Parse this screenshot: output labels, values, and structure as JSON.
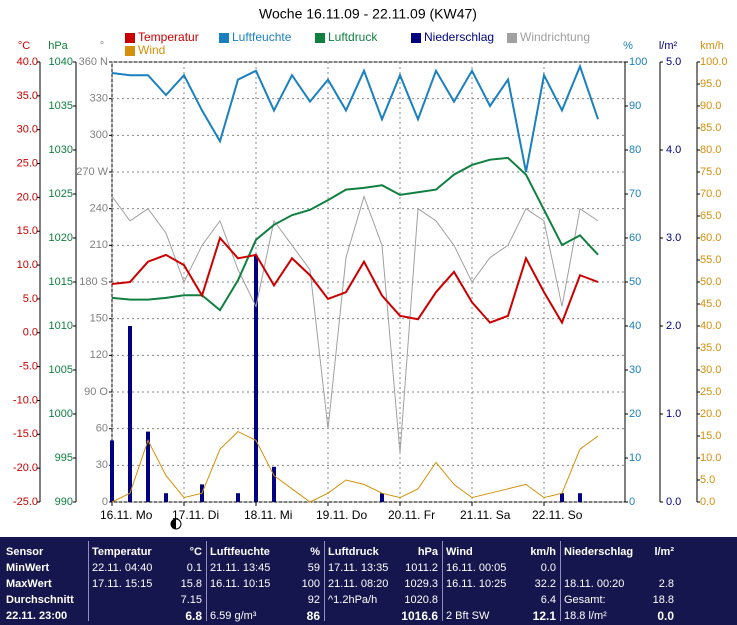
{
  "chart_data": {
    "type": "line",
    "title": "Woche 16.11.09 - 22.11.09 (KW47)",
    "x": [
      0,
      6,
      12,
      18,
      24,
      30,
      36,
      42,
      48,
      54,
      60,
      66,
      72,
      78,
      84,
      90,
      96,
      102,
      108,
      114,
      120,
      126,
      132,
      138,
      144,
      150,
      156,
      162
    ],
    "xlim": [
      0,
      171
    ],
    "xticks": [
      {
        "value": 0,
        "label": "16.11. Mo"
      },
      {
        "value": 24,
        "label": "17.11. Di"
      },
      {
        "value": 48,
        "label": "18.11. Mi"
      },
      {
        "value": 72,
        "label": "19.11. Do"
      },
      {
        "value": 96,
        "label": "20.11. Fr"
      },
      {
        "value": 120,
        "label": "21.11. Sa"
      },
      {
        "value": 144,
        "label": "22.11. So"
      }
    ],
    "axes": [
      {
        "label": "°C",
        "color": "#cc0000",
        "lim": [
          -25,
          40
        ],
        "grid": false,
        "ticks": [
          {
            "value": -25,
            "label": "-25.0"
          },
          {
            "value": -20,
            "label": "-20.0"
          },
          {
            "value": -15,
            "label": "-15.0"
          },
          {
            "value": -10,
            "label": "-10.0"
          },
          {
            "value": -5,
            "label": "-5.0"
          },
          {
            "value": 0,
            "label": "0.0"
          },
          {
            "value": 5,
            "label": "5.0"
          },
          {
            "value": 10,
            "label": "10.0"
          },
          {
            "value": 15,
            "label": "15.0"
          },
          {
            "value": 20,
            "label": "20.0"
          },
          {
            "value": 25,
            "label": "25.0"
          },
          {
            "value": 30,
            "label": "30.0"
          },
          {
            "value": 35,
            "label": "35.0"
          },
          {
            "value": 40,
            "label": "40.0"
          }
        ]
      },
      {
        "label": "hPa",
        "color": "#108040",
        "lim": [
          990,
          1040
        ],
        "grid": false,
        "ticks": [
          990,
          995,
          1000,
          1005,
          1010,
          1015,
          1020,
          1025,
          1030,
          1035,
          1040
        ]
      },
      {
        "label": "°",
        "color": "#808080",
        "lim": [
          0,
          360
        ],
        "grid": true,
        "ticks": [
          0,
          30,
          60,
          {
            "value": 90,
            "label": "90 O"
          },
          120,
          150,
          {
            "value": 180,
            "label": "180 S"
          },
          210,
          240,
          {
            "value": 270,
            "label": "270 W"
          },
          300,
          330,
          {
            "value": 360,
            "label": "360 N"
          }
        ]
      },
      {
        "label": "%",
        "color": "#1a80c0",
        "lim": [
          0,
          100
        ],
        "grid": false,
        "ticks": [
          0,
          10,
          20,
          30,
          40,
          50,
          60,
          70,
          80,
          90,
          100
        ]
      },
      {
        "label": "l/m²",
        "color": "#000080",
        "lim": [
          0,
          5
        ],
        "grid": false,
        "ticks": [
          {
            "value": 0,
            "label": "0.0"
          },
          {
            "value": 1,
            "label": "1.0"
          },
          {
            "value": 2,
            "label": "2.0"
          },
          {
            "value": 3,
            "label": "3.0"
          },
          {
            "value": 4,
            "label": "4.0"
          },
          {
            "value": 5,
            "label": "5.0"
          }
        ]
      },
      {
        "label": "km/h",
        "color": "#d4900a",
        "lim": [
          0,
          100
        ],
        "grid": false,
        "ticks": [
          {
            "value": 0,
            "label": "0.0"
          },
          {
            "value": 5,
            "label": "5.0"
          },
          {
            "value": 10,
            "label": "10.0"
          },
          {
            "value": 15,
            "label": "15.0"
          },
          {
            "value": 20,
            "label": "20.0"
          },
          {
            "value": 25,
            "label": "25.0"
          },
          {
            "value": 30,
            "label": "30.0"
          },
          {
            "value": 35,
            "label": "35.0"
          },
          {
            "value": 40,
            "label": "40.0"
          },
          {
            "value": 45,
            "label": "45.0"
          },
          {
            "value": 50,
            "label": "50.0"
          },
          {
            "value": 55,
            "label": "55.0"
          },
          {
            "value": 60,
            "label": "60.0"
          },
          {
            "value": 65,
            "label": "65.0"
          },
          {
            "value": 70,
            "label": "70.0"
          },
          {
            "value": 75,
            "label": "75.0"
          },
          {
            "value": 80,
            "label": "80.0"
          },
          {
            "value": 85,
            "label": "85.0"
          },
          {
            "value": 90,
            "label": "90.0"
          },
          {
            "value": 95,
            "label": "95.0"
          },
          {
            "value": 100,
            "label": "100.0"
          }
        ]
      }
    ],
    "series": [
      {
        "name": "Niederschlag",
        "color": "#000080",
        "axis": 4,
        "kind": "bar",
        "values": [
          0.7,
          2.0,
          0.8,
          0.1,
          0,
          0.2,
          0,
          0.1,
          2.8,
          0.4,
          0,
          0,
          0,
          0,
          0,
          0.1,
          0,
          0,
          0,
          0,
          0,
          0,
          0,
          0,
          0,
          0.1,
          0.1,
          0
        ]
      },
      {
        "name": "Windrichtung",
        "color": "#a0a0a0",
        "axis": 2,
        "kind": "line",
        "values": [
          250,
          230,
          240,
          220,
          180,
          210,
          230,
          190,
          160,
          230,
          210,
          190,
          60,
          200,
          250,
          210,
          40,
          240,
          230,
          210,
          180,
          200,
          210,
          240,
          230,
          160,
          240,
          230
        ]
      },
      {
        "name": "Wind",
        "color": "#d4900a",
        "axis": 5,
        "kind": "line",
        "values": [
          0,
          2,
          14,
          6,
          1,
          2,
          12,
          16,
          14,
          6,
          3,
          0,
          2,
          5,
          4,
          2,
          1,
          3,
          9,
          4,
          1,
          2,
          3,
          4,
          1,
          2,
          12,
          15
        ]
      },
      {
        "name": "Luftfeuchte",
        "color": "#1a80c0",
        "axis": 3,
        "kind": "line",
        "values": [
          97.5,
          97,
          97,
          92.5,
          97,
          89,
          82,
          96,
          98,
          89,
          97,
          91,
          96,
          89,
          98,
          87,
          97,
          87,
          98,
          91,
          98,
          90,
          96,
          75,
          97,
          89,
          99,
          87
        ]
      },
      {
        "name": "Luftdruck",
        "color": "#108040",
        "axis": 1,
        "kind": "line",
        "values": [
          1013.2,
          1013,
          1013,
          1013.2,
          1013.5,
          1013.5,
          1011.8,
          1015.2,
          1019.8,
          1021.5,
          1022.6,
          1023.2,
          1024.3,
          1025.5,
          1025.7,
          1026,
          1024.9,
          1025.2,
          1025.5,
          1027.2,
          1028.3,
          1028.9,
          1029.1,
          1027.2,
          1023.2,
          1019.2,
          1020.3,
          1018.1
        ]
      },
      {
        "name": "Temperatur",
        "color": "#cc0000",
        "axis": 0,
        "kind": "line",
        "values": [
          7.2,
          7.5,
          10.5,
          11.5,
          10,
          5.5,
          14,
          11,
          11.5,
          7,
          11,
          8.5,
          5,
          6,
          10.5,
          5.5,
          2.5,
          2,
          6,
          9,
          4.5,
          1.5,
          2.5,
          11,
          6,
          1.5,
          8.5,
          7.5
        ]
      }
    ]
  },
  "table": {
    "header": [
      {
        "name": "Sensor"
      },
      {
        "name": "Temperatur",
        "unit": "°C"
      },
      {
        "name": "Luftfeuchte",
        "unit": "%"
      },
      {
        "name": "Luftdruck",
        "unit": "hPa"
      },
      {
        "name": "Wind",
        "unit": "km/h"
      },
      {
        "name": "Niederschlag",
        "unit": "l/m²"
      }
    ],
    "rows": [
      {
        "label": "MinWert",
        "cells": [
          {
            "time": "22.11. 04:40",
            "value": "0.1"
          },
          {
            "time": "21.11. 13:45",
            "value": "59"
          },
          {
            "time": "17.11. 13:35",
            "value": "1011.2"
          },
          {
            "time": "16.11. 00:05",
            "value": "0.0"
          },
          {}
        ]
      },
      {
        "label": "MaxWert",
        "cells": [
          {
            "time": "17.11. 15:15",
            "value": "15.8"
          },
          {
            "time": "16.11. 10:15",
            "value": "100"
          },
          {
            "time": "21.11. 08:20",
            "value": "1029.3"
          },
          {
            "time": "16.11. 10:25",
            "value": "32.2"
          },
          {
            "time": "18.11. 00:20",
            "value": "2.8"
          }
        ]
      },
      {
        "label": "Durchschnitt",
        "cells": [
          {
            "value": "7.15"
          },
          {
            "value": "92"
          },
          {
            "time": "^1.2hPa/h",
            "value": "1020.8"
          },
          {
            "value": "6.4"
          },
          {
            "time": "Gesamt:",
            "value": "18.8"
          }
        ]
      },
      {
        "label": "22.11. 23:00",
        "cells": [
          {
            "value": "6.8"
          },
          {
            "time": "6.59 g/m³",
            "value": "86"
          },
          {
            "value": "1016.6"
          },
          {
            "time": "2 Bft SW",
            "value": "12.1"
          },
          {
            "time": "18.8 l/m²",
            "value": "0.0"
          }
        ]
      }
    ]
  }
}
